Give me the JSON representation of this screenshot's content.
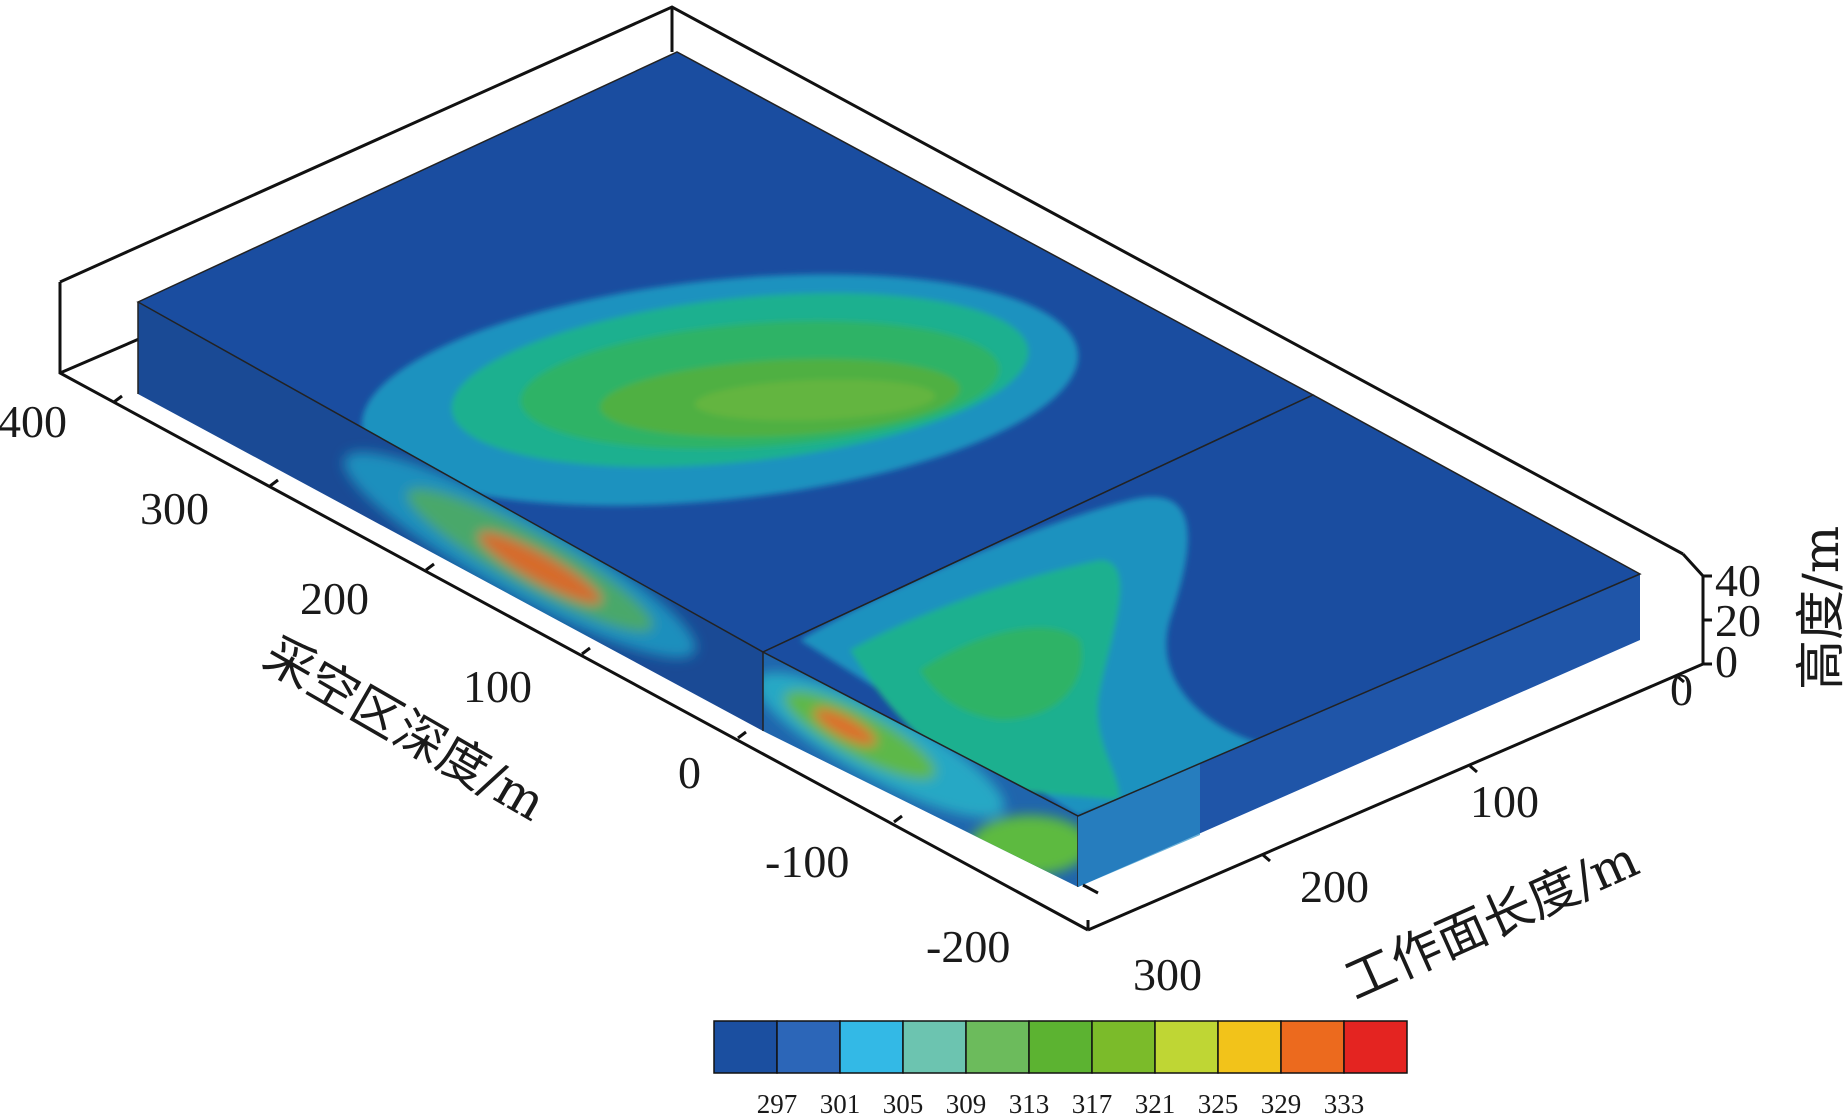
{
  "chart_data": {
    "type": "3d-contour",
    "axes": {
      "depth": {
        "label": "采空区深度/m",
        "ticks": [
          "400",
          "300",
          "200",
          "100",
          "0",
          "-100",
          "-200"
        ]
      },
      "length": {
        "label": "工作面长度/m",
        "ticks": [
          "0",
          "100",
          "200",
          "300"
        ]
      },
      "height": {
        "label": "高度/m",
        "ticks": [
          "40",
          "20",
          "0"
        ]
      }
    },
    "colorbar": {
      "values": [
        "297",
        "301",
        "305",
        "309",
        "313",
        "317",
        "321",
        "325",
        "329",
        "333"
      ],
      "colors": [
        "#1b4fa0",
        "#2c66b8",
        "#33b9e6",
        "#6cc4b0",
        "#6cbb5c",
        "#5cb331",
        "#7bbb2a",
        "#bfd634",
        "#f2c31a",
        "#ec6a1e",
        "#e42421"
      ]
    }
  }
}
